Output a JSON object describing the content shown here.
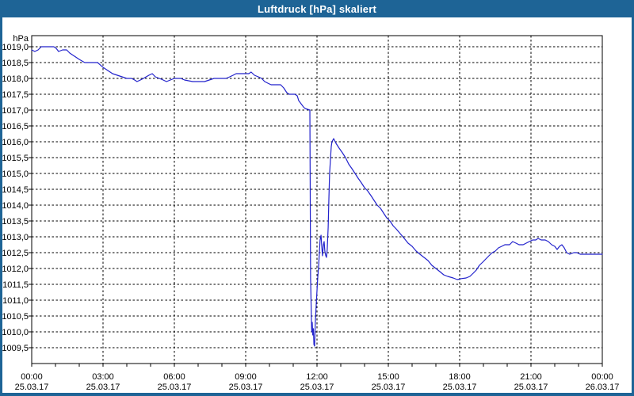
{
  "window": {
    "title": "Luftdruck [hPa] skaliert"
  },
  "colors": {
    "titlebar": "#1e6496",
    "window_border": "#1e6496",
    "background": "#ffffff",
    "grid": "#000000",
    "text": "#000000",
    "plot_line": "#2222cc"
  },
  "chart_data": {
    "type": "line",
    "title": "Luftdruck [hPa] skaliert",
    "ylabel": "hPa",
    "ylim": [
      1009.0,
      1019.35
    ],
    "xlim_hours": [
      0,
      24
    ],
    "grid": "dashed",
    "legend": "none",
    "minor_x_tick_hours": 1,
    "y_ticks": [
      {
        "value": 1019.0,
        "label": "1019,0"
      },
      {
        "value": 1018.5,
        "label": "1018,5"
      },
      {
        "value": 1018.0,
        "label": "1018,0"
      },
      {
        "value": 1017.5,
        "label": "1017,5"
      },
      {
        "value": 1017.0,
        "label": "1017,0"
      },
      {
        "value": 1016.5,
        "label": "1016,5"
      },
      {
        "value": 1016.0,
        "label": "1016,0"
      },
      {
        "value": 1015.5,
        "label": "1015,5"
      },
      {
        "value": 1015.0,
        "label": "1015,0"
      },
      {
        "value": 1014.5,
        "label": "1014,5"
      },
      {
        "value": 1014.0,
        "label": "1014,0"
      },
      {
        "value": 1013.5,
        "label": "1013,5"
      },
      {
        "value": 1013.0,
        "label": "1013,0"
      },
      {
        "value": 1012.5,
        "label": "1012,5"
      },
      {
        "value": 1012.0,
        "label": "1012,0"
      },
      {
        "value": 1011.5,
        "label": "1011,5"
      },
      {
        "value": 1011.0,
        "label": "1011,0"
      },
      {
        "value": 1010.5,
        "label": "1010,5"
      },
      {
        "value": 1010.0,
        "label": "1010,0"
      },
      {
        "value": 1009.5,
        "label": "1009,5"
      }
    ],
    "x_ticks": [
      {
        "hour": 0,
        "time": "00:00",
        "date": "25.03.17"
      },
      {
        "hour": 3,
        "time": "03:00",
        "date": "25.03.17"
      },
      {
        "hour": 6,
        "time": "06:00",
        "date": "25.03.17"
      },
      {
        "hour": 9,
        "time": "09:00",
        "date": "25.03.17"
      },
      {
        "hour": 12,
        "time": "12:00",
        "date": "25.03.17"
      },
      {
        "hour": 15,
        "time": "15:00",
        "date": "25.03.17"
      },
      {
        "hour": 18,
        "time": "18:00",
        "date": "25.03.17"
      },
      {
        "hour": 21,
        "time": "21:00",
        "date": "25.03.17"
      },
      {
        "hour": 24,
        "time": "00:00",
        "date": "26.03.17"
      }
    ],
    "series": [
      {
        "name": "Luftdruck",
        "unit": "hPa",
        "color": "#2222cc",
        "points": [
          [
            0,
            1018.9
          ],
          [
            0.13,
            1018.85
          ],
          [
            0.27,
            1018.9
          ],
          [
            0.4,
            1019.0
          ],
          [
            0.93,
            1019.0
          ],
          [
            1.03,
            1018.95
          ],
          [
            1.13,
            1018.85
          ],
          [
            1.3,
            1018.9
          ],
          [
            1.47,
            1018.9
          ],
          [
            1.6,
            1018.8
          ],
          [
            1.8,
            1018.7
          ],
          [
            2.0,
            1018.6
          ],
          [
            2.23,
            1018.5
          ],
          [
            2.77,
            1018.5
          ],
          [
            3.0,
            1018.35
          ],
          [
            3.2,
            1018.25
          ],
          [
            3.4,
            1018.15
          ],
          [
            3.6,
            1018.1
          ],
          [
            3.8,
            1018.05
          ],
          [
            4.0,
            1018.0
          ],
          [
            4.2,
            1018.0
          ],
          [
            4.33,
            1017.95
          ],
          [
            4.43,
            1017.9
          ],
          [
            4.57,
            1017.95
          ],
          [
            4.7,
            1018.0
          ],
          [
            4.93,
            1018.1
          ],
          [
            5.07,
            1018.15
          ],
          [
            5.2,
            1018.05
          ],
          [
            5.37,
            1018.0
          ],
          [
            5.53,
            1017.95
          ],
          [
            5.67,
            1017.9
          ],
          [
            5.83,
            1017.95
          ],
          [
            6.0,
            1018.0
          ],
          [
            6.27,
            1018.0
          ],
          [
            6.43,
            1017.95
          ],
          [
            6.77,
            1017.9
          ],
          [
            7.27,
            1017.9
          ],
          [
            7.47,
            1017.95
          ],
          [
            7.67,
            1018.0
          ],
          [
            8.17,
            1018.0
          ],
          [
            8.33,
            1018.05
          ],
          [
            8.47,
            1018.1
          ],
          [
            8.6,
            1018.15
          ],
          [
            9.0,
            1018.15
          ],
          [
            9.13,
            1018.15
          ],
          [
            9.23,
            1018.2
          ],
          [
            9.37,
            1018.1
          ],
          [
            9.53,
            1018.05
          ],
          [
            9.67,
            1018.0
          ],
          [
            9.8,
            1017.9
          ],
          [
            9.93,
            1017.85
          ],
          [
            10.07,
            1017.8
          ],
          [
            10.47,
            1017.8
          ],
          [
            10.6,
            1017.7
          ],
          [
            10.73,
            1017.55
          ],
          [
            10.83,
            1017.5
          ],
          [
            11.07,
            1017.5
          ],
          [
            11.17,
            1017.45
          ],
          [
            11.23,
            1017.3
          ],
          [
            11.33,
            1017.2
          ],
          [
            11.43,
            1017.1
          ],
          [
            11.5,
            1017.05
          ],
          [
            11.7,
            1017.0
          ],
          [
            11.73,
            1011.7
          ],
          [
            11.77,
            1010.2
          ],
          [
            11.78,
            1010.0
          ],
          [
            11.8,
            1010.3
          ],
          [
            11.82,
            1009.9
          ],
          [
            11.85,
            1010.1
          ],
          [
            11.87,
            1009.6
          ],
          [
            11.9,
            1009.55
          ],
          [
            11.93,
            1010.3
          ],
          [
            11.97,
            1010.9
          ],
          [
            12.0,
            1011.3
          ],
          [
            12.03,
            1011.7
          ],
          [
            12.07,
            1012.1
          ],
          [
            12.1,
            1012.5
          ],
          [
            12.13,
            1012.9
          ],
          [
            12.17,
            1013.05
          ],
          [
            12.2,
            1012.7
          ],
          [
            12.23,
            1012.4
          ],
          [
            12.27,
            1012.75
          ],
          [
            12.3,
            1012.85
          ],
          [
            12.33,
            1012.55
          ],
          [
            12.37,
            1012.4
          ],
          [
            12.4,
            1012.35
          ],
          [
            12.43,
            1012.6
          ],
          [
            12.47,
            1013.3
          ],
          [
            12.5,
            1014.2
          ],
          [
            12.53,
            1015.0
          ],
          [
            12.57,
            1015.5
          ],
          [
            12.6,
            1015.85
          ],
          [
            12.63,
            1016.0
          ],
          [
            12.7,
            1016.1
          ],
          [
            12.8,
            1015.95
          ],
          [
            12.93,
            1015.8
          ],
          [
            13.07,
            1015.65
          ],
          [
            13.2,
            1015.5
          ],
          [
            13.33,
            1015.3
          ],
          [
            13.47,
            1015.15
          ],
          [
            13.6,
            1015.0
          ],
          [
            13.73,
            1014.85
          ],
          [
            13.87,
            1014.7
          ],
          [
            14.0,
            1014.55
          ],
          [
            14.13,
            1014.45
          ],
          [
            14.27,
            1014.3
          ],
          [
            14.4,
            1014.15
          ],
          [
            14.53,
            1014.0
          ],
          [
            14.67,
            1013.9
          ],
          [
            14.8,
            1013.75
          ],
          [
            14.93,
            1013.6
          ],
          [
            15.07,
            1013.5
          ],
          [
            15.2,
            1013.35
          ],
          [
            15.33,
            1013.25
          ],
          [
            15.5,
            1013.1
          ],
          [
            15.67,
            1012.95
          ],
          [
            15.83,
            1012.8
          ],
          [
            16.0,
            1012.7
          ],
          [
            16.17,
            1012.55
          ],
          [
            16.33,
            1012.45
          ],
          [
            16.5,
            1012.35
          ],
          [
            16.67,
            1012.25
          ],
          [
            16.83,
            1012.1
          ],
          [
            17.0,
            1012.0
          ],
          [
            17.17,
            1011.9
          ],
          [
            17.33,
            1011.8
          ],
          [
            17.5,
            1011.75
          ],
          [
            17.73,
            1011.7
          ],
          [
            17.9,
            1011.65
          ],
          [
            18.07,
            1011.68
          ],
          [
            18.27,
            1011.7
          ],
          [
            18.43,
            1011.75
          ],
          [
            18.57,
            1011.85
          ],
          [
            18.7,
            1011.95
          ],
          [
            18.83,
            1012.1
          ],
          [
            18.97,
            1012.2
          ],
          [
            19.1,
            1012.3
          ],
          [
            19.23,
            1012.4
          ],
          [
            19.37,
            1012.5
          ],
          [
            19.5,
            1012.55
          ],
          [
            19.63,
            1012.65
          ],
          [
            19.77,
            1012.7
          ],
          [
            19.9,
            1012.75
          ],
          [
            20.1,
            1012.75
          ],
          [
            20.23,
            1012.85
          ],
          [
            20.37,
            1012.8
          ],
          [
            20.5,
            1012.75
          ],
          [
            20.67,
            1012.75
          ],
          [
            20.8,
            1012.8
          ],
          [
            20.93,
            1012.85
          ],
          [
            21.07,
            1012.9
          ],
          [
            21.2,
            1012.9
          ],
          [
            21.3,
            1012.95
          ],
          [
            21.43,
            1012.9
          ],
          [
            21.6,
            1012.9
          ],
          [
            21.73,
            1012.85
          ],
          [
            21.87,
            1012.75
          ],
          [
            22.0,
            1012.7
          ],
          [
            22.1,
            1012.6
          ],
          [
            22.2,
            1012.7
          ],
          [
            22.3,
            1012.75
          ],
          [
            22.4,
            1012.65
          ],
          [
            22.5,
            1012.5
          ],
          [
            22.63,
            1012.45
          ],
          [
            22.8,
            1012.5
          ],
          [
            22.93,
            1012.5
          ],
          [
            23.07,
            1012.45
          ],
          [
            23.33,
            1012.45
          ],
          [
            23.67,
            1012.45
          ],
          [
            24.0,
            1012.45
          ]
        ]
      }
    ]
  }
}
